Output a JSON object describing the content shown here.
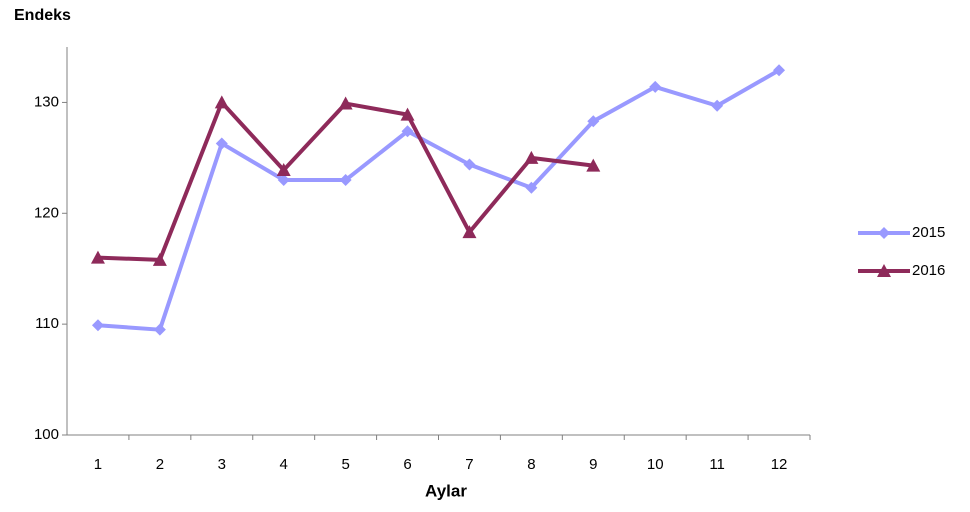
{
  "chart_data": {
    "type": "line",
    "title": "Endeks",
    "x_label": "Aylar",
    "categories": [
      "1",
      "2",
      "3",
      "4",
      "5",
      "6",
      "7",
      "8",
      "9",
      "10",
      "11",
      "12"
    ],
    "series": [
      {
        "name": "2015",
        "color": "#9999ff",
        "marker": "diamond",
        "values": [
          109.9,
          109.5,
          126.3,
          123.0,
          123.0,
          127.4,
          124.4,
          122.3,
          128.3,
          131.4,
          129.7,
          132.9
        ]
      },
      {
        "name": "2016",
        "color": "#8e2a5a",
        "marker": "triangle",
        "values": [
          116.0,
          115.8,
          130.0,
          123.9,
          129.9,
          128.9,
          118.3,
          125.0,
          124.3,
          null,
          null,
          null
        ]
      }
    ],
    "ylim": [
      100,
      135
    ],
    "yticks": [
      100,
      110,
      120,
      130
    ],
    "grid": false,
    "legend": "right"
  }
}
